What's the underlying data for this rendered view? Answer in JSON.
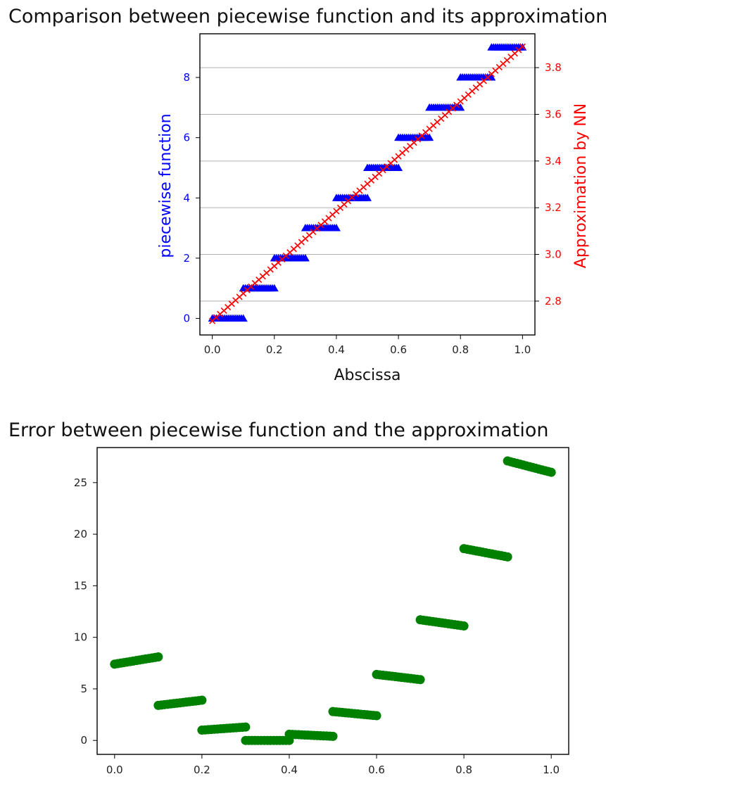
{
  "chart_data": [
    {
      "type": "scatter",
      "title": "Comparison between piecewise function and its approximation",
      "xlabel": "Abscissa",
      "ylabel": "piecewise function",
      "ylabel_right": "Approximation by NN",
      "xlim": [
        -0.04,
        1.04
      ],
      "ylim": [
        -0.55,
        9.45
      ],
      "ylim_right": [
        2.655,
        3.945
      ],
      "xticks": [
        "0.0",
        "0.2",
        "0.4",
        "0.6",
        "0.8",
        "1.0"
      ],
      "yticks": [
        "0",
        "2",
        "4",
        "6",
        "8"
      ],
      "yticks_right": [
        "2.8",
        "3.0",
        "3.2",
        "3.4",
        "3.6",
        "3.8"
      ],
      "grid": "horizontal (right axis)",
      "series": [
        {
          "marker": "triangle",
          "color": "#0000ff",
          "axis": "left",
          "segments": [
            {
              "x": [
                0.0,
                0.1
              ],
              "y": 0
            },
            {
              "x": [
                0.1,
                0.2
              ],
              "y": 1
            },
            {
              "x": [
                0.2,
                0.3
              ],
              "y": 2
            },
            {
              "x": [
                0.3,
                0.4
              ],
              "y": 3
            },
            {
              "x": [
                0.4,
                0.5
              ],
              "y": 4
            },
            {
              "x": [
                0.5,
                0.6
              ],
              "y": 5
            },
            {
              "x": [
                0.6,
                0.7
              ],
              "y": 6
            },
            {
              "x": [
                0.7,
                0.8
              ],
              "y": 7
            },
            {
              "x": [
                0.8,
                0.9
              ],
              "y": 8
            },
            {
              "x": [
                0.9,
                1.0
              ],
              "y": 9
            }
          ]
        },
        {
          "marker": "x",
          "color": "#ff0000",
          "axis": "right",
          "line": {
            "x": [
              0.0,
              1.0
            ],
            "y": [
              2.715,
              3.89
            ]
          }
        }
      ]
    },
    {
      "type": "scatter",
      "title": "Error between piecewise function and the approximation",
      "xlim": [
        -0.04,
        1.04
      ],
      "ylim": [
        -1.35,
        28.4
      ],
      "xticks": [
        "0.0",
        "0.2",
        "0.4",
        "0.6",
        "0.8",
        "1.0"
      ],
      "yticks": [
        "0",
        "5",
        "10",
        "15",
        "20",
        "25"
      ],
      "series": [
        {
          "marker": "circle",
          "color": "#008000",
          "segments": [
            {
              "x": [
                0.0,
                0.1
              ],
              "y": [
                7.4,
                8.1
              ]
            },
            {
              "x": [
                0.1,
                0.2
              ],
              "y": [
                3.4,
                3.9
              ]
            },
            {
              "x": [
                0.2,
                0.3
              ],
              "y": [
                1.0,
                1.3
              ]
            },
            {
              "x": [
                0.3,
                0.4
              ],
              "y": [
                0.0,
                0.0
              ]
            },
            {
              "x": [
                0.4,
                0.5
              ],
              "y": [
                0.6,
                0.4
              ]
            },
            {
              "x": [
                0.5,
                0.6
              ],
              "y": [
                2.8,
                2.4
              ]
            },
            {
              "x": [
                0.6,
                0.7
              ],
              "y": [
                6.4,
                5.9
              ]
            },
            {
              "x": [
                0.7,
                0.8
              ],
              "y": [
                11.7,
                11.1
              ]
            },
            {
              "x": [
                0.8,
                0.9
              ],
              "y": [
                18.6,
                17.8
              ]
            },
            {
              "x": [
                0.9,
                1.0
              ],
              "y": [
                27.1,
                26.0
              ]
            }
          ]
        }
      ]
    }
  ]
}
